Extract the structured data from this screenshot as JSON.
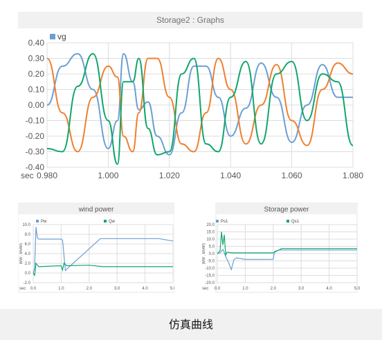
{
  "main_window": {
    "title": "Storage2 : Graphs"
  },
  "main_chart": {
    "legend": [
      "vg"
    ],
    "x_prefix": "sec",
    "x_ticks": [
      "0.980",
      "1.000",
      "1.020",
      "1.040",
      "1.060",
      "1.080"
    ],
    "y_ticks": [
      "0.40",
      "0.30",
      "0.20",
      "0.10",
      "0.00",
      "-0.10",
      "-0.20",
      "-0.30",
      "-0.40"
    ]
  },
  "wind_panel": {
    "title": "wind power",
    "legend": [
      "Pw",
      "Qw"
    ],
    "y_axis_label": "(MW , MVAR)",
    "x_prefix": "sec",
    "x_ticks": [
      "0.0",
      "1.0",
      "2.0",
      "3.0",
      "4.0",
      "5.0"
    ],
    "y_ticks": [
      "10.0",
      "8.0",
      "6.0",
      "4.0",
      "2.0",
      "0.0",
      "-2.0"
    ]
  },
  "storage_panel": {
    "title": "Storage power",
    "legend": [
      "Ps1",
      "Qs1"
    ],
    "y_axis_label": "(MW , MVAR)",
    "x_prefix": "sec",
    "x_ticks": [
      "0.0",
      "1.0",
      "2.0",
      "3.0",
      "4.0",
      "5.0"
    ],
    "y_ticks": [
      "20.0",
      "15.0",
      "10.0",
      "5.0",
      "0.0",
      "-5.0",
      "-10.0",
      "-15.0",
      "-20.0"
    ]
  },
  "footer": {
    "caption": "仿真曲线"
  },
  "colors": {
    "blue": "#6a9fd4",
    "orange": "#ee7f2e",
    "green": "#0fa56b",
    "grid": "#dcdcdc",
    "axis_text": "#555555"
  },
  "chart_data": [
    {
      "type": "line",
      "x_label": "",
      "y_label": "",
      "xlim": [
        0.98,
        1.08
      ],
      "ylim": [
        -0.4,
        0.4
      ],
      "grid": true,
      "legend_position": "top-left",
      "series": [
        {
          "name": "vg",
          "color": "#6a9fd4",
          "x": [
            0.98,
            0.985,
            0.99,
            0.995,
            1.0,
            1.003,
            1.005,
            1.008,
            1.01,
            1.013,
            1.016,
            1.02,
            1.024,
            1.028,
            1.032,
            1.036,
            1.04,
            1.045,
            1.05,
            1.055,
            1.06,
            1.065,
            1.07,
            1.075,
            1.08
          ],
          "y": [
            0.0,
            0.25,
            0.33,
            0.1,
            -0.28,
            -0.1,
            0.33,
            0.15,
            -0.03,
            0.02,
            -0.2,
            -0.32,
            -0.05,
            0.25,
            0.25,
            0.05,
            -0.2,
            -0.02,
            0.27,
            0.05,
            -0.24,
            0.0,
            0.26,
            0.05,
            0.05
          ]
        },
        {
          "name": "",
          "color": "#ee7f2e",
          "x": [
            0.98,
            0.985,
            0.99,
            0.995,
            1.0,
            1.003,
            1.005,
            1.008,
            1.01,
            1.013,
            1.016,
            1.02,
            1.024,
            1.028,
            1.032,
            1.036,
            1.04,
            1.045,
            1.05,
            1.055,
            1.06,
            1.065,
            1.07,
            1.075,
            1.08
          ],
          "y": [
            0.3,
            -0.05,
            -0.3,
            0.05,
            0.25,
            0.18,
            -0.2,
            -0.3,
            -0.05,
            0.3,
            0.3,
            0.05,
            -0.25,
            -0.3,
            -0.05,
            0.3,
            0.1,
            -0.25,
            0.0,
            0.26,
            -0.1,
            -0.26,
            0.1,
            0.27,
            0.2
          ]
        },
        {
          "name": "",
          "color": "#0fa56b",
          "x": [
            0.98,
            0.985,
            0.99,
            0.995,
            1.0,
            1.003,
            1.005,
            1.008,
            1.01,
            1.013,
            1.016,
            1.02,
            1.024,
            1.028,
            1.032,
            1.036,
            1.04,
            1.045,
            1.05,
            1.055,
            1.06,
            1.065,
            1.07,
            1.075,
            1.08
          ],
          "y": [
            -0.28,
            -0.3,
            0.12,
            0.33,
            -0.1,
            -0.38,
            0.15,
            0.15,
            0.3,
            -0.15,
            -0.32,
            -0.3,
            0.2,
            0.3,
            -0.25,
            -0.3,
            0.05,
            0.28,
            -0.25,
            0.2,
            0.28,
            -0.1,
            0.2,
            0.15,
            -0.26
          ]
        }
      ]
    },
    {
      "type": "line",
      "title": "wind power",
      "xlim": [
        0,
        5
      ],
      "ylim": [
        -2,
        10
      ],
      "series": [
        {
          "name": "Pw",
          "color": "#6a9fd4",
          "x": [
            0.0,
            0.05,
            0.1,
            0.15,
            0.2,
            0.5,
            1.0,
            1.05,
            1.15,
            1.2,
            2.4,
            2.5,
            4.5,
            5.0
          ],
          "y": [
            0.0,
            1.0,
            9.5,
            7.2,
            7.0,
            7.0,
            7.0,
            6.8,
            0.5,
            0.8,
            7.1,
            7.1,
            7.1,
            6.6
          ]
        },
        {
          "name": "Qw",
          "color": "#0fa56b",
          "x": [
            0.0,
            0.05,
            0.1,
            0.2,
            1.0,
            1.05,
            1.1,
            1.2,
            2.0,
            2.5,
            3.0,
            5.0
          ],
          "y": [
            0.0,
            -0.5,
            2.0,
            1.3,
            1.5,
            0.6,
            2.0,
            1.5,
            1.6,
            1.3,
            1.3,
            1.3
          ]
        }
      ]
    },
    {
      "type": "line",
      "title": "Storage power",
      "xlim": [
        0,
        5
      ],
      "ylim": [
        -20,
        20
      ],
      "series": [
        {
          "name": "Ps1",
          "color": "#6a9fd4",
          "x": [
            0.0,
            0.1,
            0.2,
            0.3,
            0.4,
            0.5,
            0.6,
            0.7,
            1.0,
            1.5,
            2.0,
            2.05,
            2.2,
            3.0,
            5.0
          ],
          "y": [
            0.0,
            0.5,
            3.0,
            -2.0,
            -6.0,
            -11.0,
            -4.0,
            -3.0,
            -4.0,
            -4.0,
            -4.0,
            1.5,
            2.5,
            2.5,
            2.5
          ]
        },
        {
          "name": "Qs1",
          "color": "#0fa56b",
          "x": [
            0.0,
            0.1,
            0.15,
            0.2,
            0.25,
            0.3,
            0.35,
            0.5,
            1.0,
            2.0,
            2.3,
            3.0,
            5.0
          ],
          "y": [
            0.0,
            2.0,
            15.0,
            6.0,
            13.0,
            -1.0,
            1.0,
            0.5,
            0.5,
            0.5,
            3.5,
            3.5,
            3.5
          ]
        }
      ]
    }
  ]
}
